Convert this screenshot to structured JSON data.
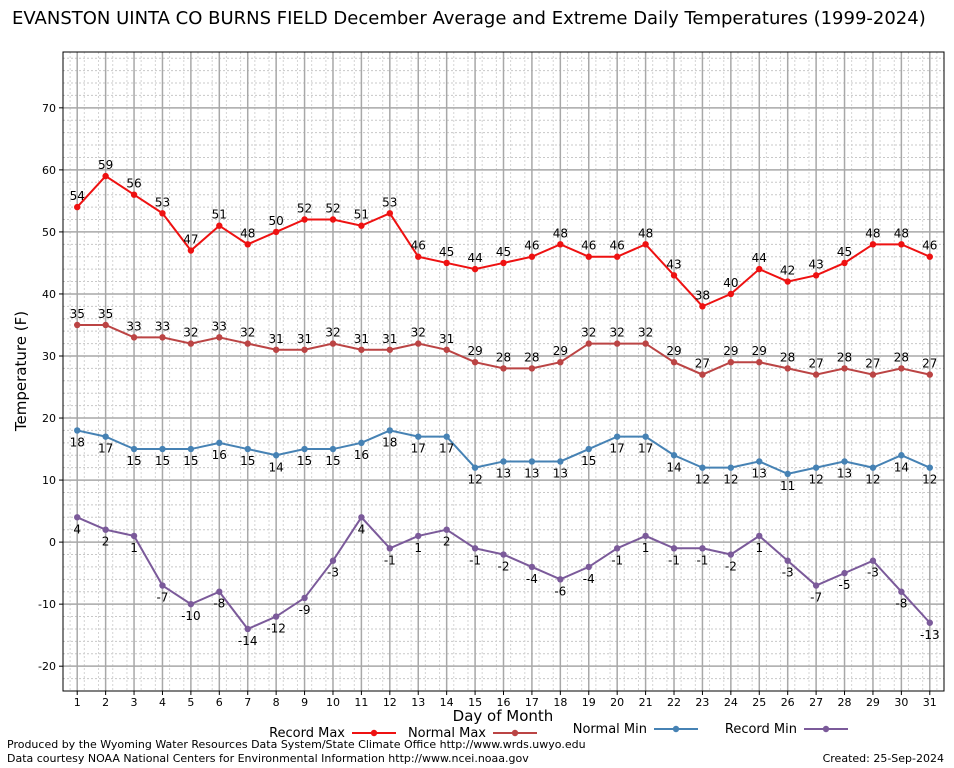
{
  "chart_data": {
    "type": "line",
    "title": "EVANSTON UINTA CO BURNS FIELD December Average and Extreme Daily Temperatures (1999-2024)",
    "xlabel": "Day of Month",
    "ylabel": "Temperature (F)",
    "ylim": [
      -24,
      79
    ],
    "yticks": [
      -20,
      -10,
      0,
      10,
      20,
      30,
      40,
      50,
      60,
      70
    ],
    "x": [
      1,
      2,
      3,
      4,
      5,
      6,
      7,
      8,
      9,
      10,
      11,
      12,
      13,
      14,
      15,
      16,
      17,
      18,
      19,
      20,
      21,
      22,
      23,
      24,
      25,
      26,
      27,
      28,
      29,
      30,
      31
    ],
    "grid": true,
    "legend_position": "bottom",
    "series": [
      {
        "name": "Record Max",
        "color": "#ee1111",
        "label_pos": "above",
        "values": [
          54,
          59,
          56,
          53,
          47,
          51,
          48,
          50,
          52,
          52,
          51,
          53,
          46,
          45,
          44,
          45,
          46,
          48,
          46,
          46,
          48,
          43,
          38,
          40,
          44,
          42,
          43,
          45,
          48,
          48,
          46
        ]
      },
      {
        "name": "Normal Max",
        "color": "#bb4444",
        "label_pos": "above",
        "values": [
          35,
          35,
          33,
          33,
          32,
          33,
          32,
          31,
          31,
          32,
          31,
          31,
          32,
          31,
          29,
          28,
          28,
          29,
          32,
          32,
          32,
          29,
          27,
          29,
          29,
          28,
          27,
          28,
          27,
          28,
          27
        ]
      },
      {
        "name": "Normal Min",
        "color": "#4682b4",
        "label_pos": "below",
        "values": [
          18,
          17,
          15,
          15,
          15,
          16,
          15,
          14,
          15,
          15,
          16,
          18,
          17,
          17,
          12,
          13,
          13,
          13,
          15,
          17,
          17,
          14,
          12,
          12,
          13,
          11,
          12,
          13,
          12,
          14,
          12
        ]
      },
      {
        "name": "Record Min",
        "color": "#7b5a9a",
        "label_pos": "below",
        "values": [
          4,
          2,
          1,
          -7,
          -10,
          -8,
          -14,
          -12,
          -9,
          -3,
          4,
          -1,
          1,
          2,
          -1,
          -2,
          -4,
          -6,
          -4,
          -1,
          1,
          -1,
          -1,
          -2,
          1,
          -3,
          -7,
          -5,
          -3,
          -8,
          -13
        ]
      }
    ]
  },
  "footer": {
    "line1": "Produced by the Wyoming Water Resources Data System/State Climate Office http://www.wrds.uwyo.edu",
    "line2": "Data courtesy NOAA National Centers for Environmental Information http://www.ncei.noaa.gov",
    "created": "Created:  25-Sep-2024"
  }
}
